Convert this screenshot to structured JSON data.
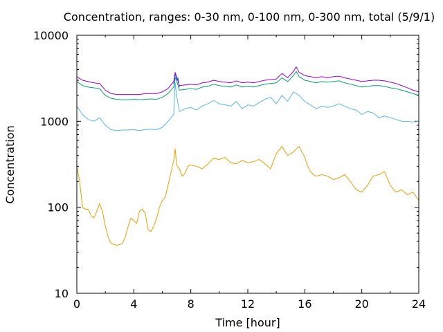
{
  "chart_data": {
    "type": "line",
    "title": "Concentration, ranges: 0-30 nm, 0-100 nm, 0-300 nm, total (5/9/1)",
    "xlabel": "Time [hour]",
    "ylabel": "Concentration",
    "xlim": [
      0,
      24
    ],
    "ylim": [
      10,
      10000
    ],
    "y_scale": "log",
    "grid": false,
    "legend": "none",
    "x_ticks": [
      "0",
      "4",
      "8",
      "12",
      "16",
      "20",
      "24"
    ],
    "y_ticks": [
      "10",
      "100",
      "1000",
      "10000"
    ],
    "x_tick_values": [
      0,
      4,
      8,
      12,
      16,
      20,
      24
    ],
    "y_tick_values": [
      10,
      100,
      1000,
      10000
    ],
    "series": [
      {
        "color": "#e69f00",
        "x": [
          0,
          0.2,
          0.4,
          0.6,
          0.8,
          1.0,
          1.2,
          1.4,
          1.6,
          1.8,
          2.0,
          2.2,
          2.4,
          2.6,
          2.8,
          3.0,
          3.2,
          3.4,
          3.6,
          3.8,
          4.0,
          4.2,
          4.4,
          4.6,
          4.8,
          5.0,
          5.2,
          5.4,
          5.6,
          5.8,
          6.0,
          6.2,
          6.4,
          6.6,
          6.8,
          6.9,
          7.0,
          7.2,
          7.4,
          7.6,
          7.8,
          8.0,
          8.4,
          8.8,
          9.2,
          9.6,
          10.0,
          10.4,
          10.8,
          11.2,
          11.6,
          12.0,
          12.4,
          12.8,
          13.2,
          13.6,
          14.0,
          14.4,
          14.8,
          15.2,
          15.6,
          16.0,
          16.2,
          16.4,
          16.6,
          16.8,
          17.2,
          17.6,
          18.0,
          18.4,
          18.8,
          19.2,
          19.6,
          20.0,
          20.4,
          20.8,
          21.2,
          21.6,
          22.0,
          22.4,
          22.8,
          23.2,
          23.6,
          24.0
        ],
        "values": [
          300,
          200,
          100,
          95,
          95,
          80,
          75,
          90,
          110,
          90,
          60,
          45,
          38,
          37,
          36,
          37,
          38,
          45,
          60,
          75,
          70,
          65,
          90,
          95,
          85,
          55,
          52,
          60,
          75,
          100,
          120,
          130,
          180,
          250,
          350,
          480,
          310,
          280,
          230,
          250,
          300,
          310,
          300,
          280,
          320,
          370,
          360,
          380,
          330,
          320,
          350,
          330,
          340,
          360,
          320,
          280,
          420,
          510,
          400,
          440,
          510,
          380,
          300,
          260,
          240,
          230,
          240,
          230,
          210,
          220,
          240,
          200,
          160,
          150,
          180,
          230,
          240,
          260,
          180,
          150,
          160,
          140,
          150,
          120
        ]
      },
      {
        "color": "#56b4e9",
        "x": [
          0,
          0.4,
          0.8,
          1.2,
          1.6,
          2.0,
          2.4,
          2.8,
          3.2,
          3.6,
          4.0,
          4.4,
          4.8,
          5.2,
          5.6,
          6.0,
          6.4,
          6.8,
          6.9,
          7.0,
          7.2,
          7.6,
          8.0,
          8.4,
          8.8,
          9.2,
          9.6,
          10.0,
          10.4,
          10.8,
          11.2,
          11.6,
          12.0,
          12.4,
          12.8,
          13.2,
          13.6,
          14.0,
          14.4,
          14.8,
          15.2,
          15.6,
          16.0,
          16.4,
          16.8,
          17.2,
          17.6,
          18.0,
          18.4,
          18.8,
          19.2,
          19.6,
          20.0,
          20.4,
          20.8,
          21.2,
          21.6,
          22.0,
          22.4,
          22.8,
          23.2,
          23.6,
          24.0
        ],
        "values": [
          1500,
          1200,
          1050,
          1000,
          1100,
          900,
          800,
          780,
          790,
          790,
          800,
          780,
          800,
          810,
          800,
          850,
          1000,
          1200,
          2800,
          2000,
          1300,
          1400,
          1450,
          1350,
          1500,
          1600,
          1750,
          1600,
          1550,
          1500,
          1700,
          1400,
          1550,
          1500,
          1650,
          1800,
          1900,
          1600,
          2000,
          1700,
          2200,
          2000,
          1700,
          1550,
          1400,
          1500,
          1450,
          1500,
          1600,
          1500,
          1400,
          1350,
          1200,
          1300,
          1250,
          1100,
          1150,
          1100,
          1050,
          1000,
          1000,
          980,
          1000
        ]
      },
      {
        "color": "#009e73",
        "x": [
          0,
          0.4,
          0.8,
          1.2,
          1.6,
          2.0,
          2.4,
          2.8,
          3.2,
          3.6,
          4.0,
          4.4,
          4.8,
          5.2,
          5.6,
          6.0,
          6.4,
          6.8,
          6.9,
          7.0,
          7.2,
          7.6,
          8.0,
          8.4,
          8.8,
          9.2,
          9.6,
          10.0,
          10.4,
          10.8,
          11.2,
          11.6,
          12.0,
          12.4,
          12.8,
          13.2,
          13.6,
          14.0,
          14.4,
          14.8,
          15.2,
          15.4,
          15.6,
          16.0,
          16.4,
          16.8,
          17.2,
          17.6,
          18.0,
          18.4,
          18.8,
          19.2,
          19.6,
          20.0,
          20.4,
          20.8,
          21.2,
          21.6,
          22.0,
          22.4,
          22.8,
          23.2,
          23.6,
          24.0
        ],
        "values": [
          2900,
          2600,
          2500,
          2450,
          2400,
          2000,
          1850,
          1800,
          1780,
          1780,
          1800,
          1780,
          1800,
          1820,
          1800,
          1900,
          2100,
          2500,
          3200,
          3000,
          2300,
          2350,
          2400,
          2350,
          2500,
          2550,
          2700,
          2600,
          2550,
          2500,
          2650,
          2500,
          2550,
          2500,
          2600,
          2700,
          2750,
          2800,
          3200,
          2900,
          3400,
          3800,
          3300,
          3000,
          2900,
          2800,
          2900,
          2850,
          2900,
          2950,
          2800,
          2700,
          2600,
          2500,
          2550,
          2600,
          2600,
          2550,
          2450,
          2400,
          2300,
          2200,
          2100,
          2000
        ]
      },
      {
        "color": "#0072b2",
        "x": [
          6.8,
          6.9,
          7.0,
          7.1,
          7.2
        ],
        "values": [
          2700,
          3600,
          3000,
          3200,
          2500
        ]
      },
      {
        "color": "#9400d3",
        "x": [
          0,
          0.4,
          0.8,
          1.2,
          1.6,
          2.0,
          2.4,
          2.8,
          3.2,
          3.6,
          4.0,
          4.4,
          4.8,
          5.2,
          5.6,
          6.0,
          6.4,
          6.8,
          6.9,
          7.0,
          7.2,
          7.6,
          8.0,
          8.4,
          8.8,
          9.2,
          9.6,
          10.0,
          10.4,
          10.8,
          11.2,
          11.6,
          12.0,
          12.4,
          12.8,
          13.2,
          13.6,
          14.0,
          14.4,
          14.8,
          15.2,
          15.4,
          15.6,
          16.0,
          16.4,
          16.8,
          17.2,
          17.6,
          18.0,
          18.4,
          18.8,
          19.2,
          19.6,
          20.0,
          20.4,
          20.8,
          21.2,
          21.6,
          22.0,
          22.4,
          22.8,
          23.2,
          23.6,
          24.0
        ],
        "values": [
          3300,
          3000,
          2900,
          2800,
          2750,
          2300,
          2100,
          2050,
          2050,
          2050,
          2050,
          2050,
          2100,
          2100,
          2100,
          2200,
          2400,
          2900,
          3700,
          3300,
          2600,
          2650,
          2700,
          2650,
          2800,
          2850,
          3000,
          2900,
          2850,
          2800,
          2950,
          2800,
          2850,
          2800,
          2900,
          3000,
          3050,
          3100,
          3600,
          3200,
          3800,
          4300,
          3700,
          3400,
          3300,
          3200,
          3300,
          3200,
          3300,
          3350,
          3200,
          3100,
          3000,
          2900,
          2950,
          3000,
          3000,
          2950,
          2850,
          2750,
          2600,
          2450,
          2300,
          2200
        ]
      }
    ]
  }
}
